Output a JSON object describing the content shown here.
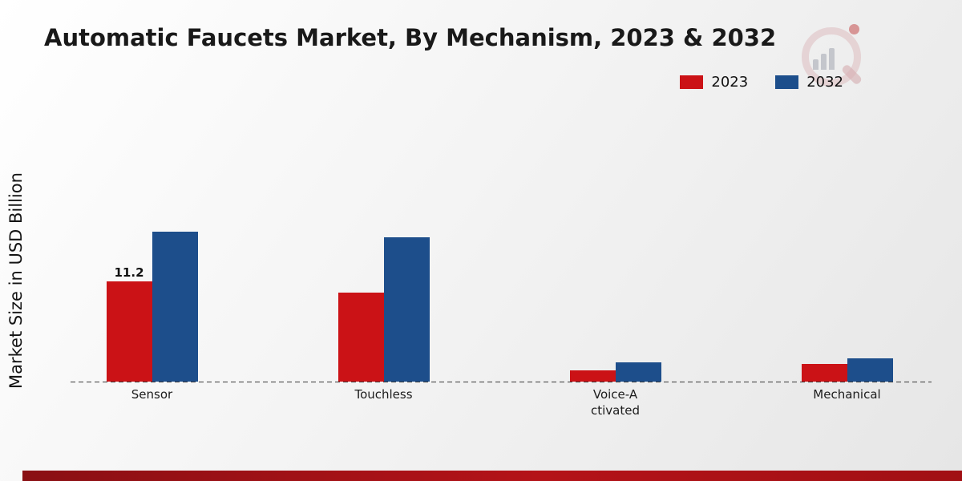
{
  "title": "Automatic Faucets Market, By Mechanism, 2023 & 2032",
  "ylabel": "Market Size in USD Billion",
  "chart_data": {
    "type": "bar",
    "title": "Automatic Faucets Market, By Mechanism, 2023 & 2032",
    "xlabel": "",
    "ylabel": "Market Size in USD Billion",
    "categories": [
      "Sensor",
      "Touchless",
      "Voice-Activated",
      "Mechanical"
    ],
    "series": [
      {
        "name": "2023",
        "color": "#cb1216",
        "values": [
          11.2,
          10.0,
          1.3,
          2.0
        ]
      },
      {
        "name": "2032",
        "color": "#1d4e8b",
        "values": [
          16.8,
          16.2,
          2.2,
          2.6
        ]
      }
    ],
    "data_labels": [
      {
        "category": "Sensor",
        "series": "2023",
        "text": "11.2"
      }
    ],
    "ylim": [
      0,
      30
    ],
    "grid": false,
    "legend_position": "top-right",
    "baseline_style": "dashed"
  },
  "colors": {
    "accent_2023": "#cb1216",
    "accent_2032": "#1d4e8b",
    "bottom_bar": "#a11014",
    "text": "#191919"
  }
}
